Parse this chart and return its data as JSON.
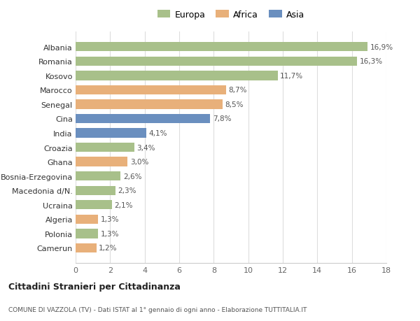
{
  "categories": [
    "Camerun",
    "Polonia",
    "Algeria",
    "Ucraina",
    "Macedonia d/N.",
    "Bosnia-Erzegovina",
    "Ghana",
    "Croazia",
    "India",
    "Cina",
    "Senegal",
    "Marocco",
    "Kosovo",
    "Romania",
    "Albania"
  ],
  "values": [
    1.2,
    1.3,
    1.3,
    2.1,
    2.3,
    2.6,
    3.0,
    3.4,
    4.1,
    7.8,
    8.5,
    8.7,
    11.7,
    16.3,
    16.9
  ],
  "labels": [
    "1,2%",
    "1,3%",
    "1,3%",
    "2,1%",
    "2,3%",
    "2,6%",
    "3,0%",
    "3,4%",
    "4,1%",
    "7,8%",
    "8,5%",
    "8,7%",
    "11,7%",
    "16,3%",
    "16,9%"
  ],
  "continents": [
    "Africa",
    "Europa",
    "Africa",
    "Europa",
    "Europa",
    "Europa",
    "Africa",
    "Europa",
    "Asia",
    "Asia",
    "Africa",
    "Africa",
    "Europa",
    "Europa",
    "Europa"
  ],
  "colors": {
    "Europa": "#a8c08a",
    "Africa": "#e8b07a",
    "Asia": "#6a8fbf"
  },
  "legend": [
    "Europa",
    "Africa",
    "Asia"
  ],
  "legend_colors": [
    "#a8c08a",
    "#e8b07a",
    "#6a8fbf"
  ],
  "title": "Cittadini Stranieri per Cittadinanza",
  "subtitle": "COMUNE DI VAZZOLA (TV) - Dati ISTAT al 1° gennaio di ogni anno - Elaborazione TUTTITALIA.IT",
  "xlim": [
    0,
    18
  ],
  "xticks": [
    0,
    2,
    4,
    6,
    8,
    10,
    12,
    14,
    16,
    18
  ],
  "background_color": "#ffffff",
  "grid_color": "#dddddd"
}
